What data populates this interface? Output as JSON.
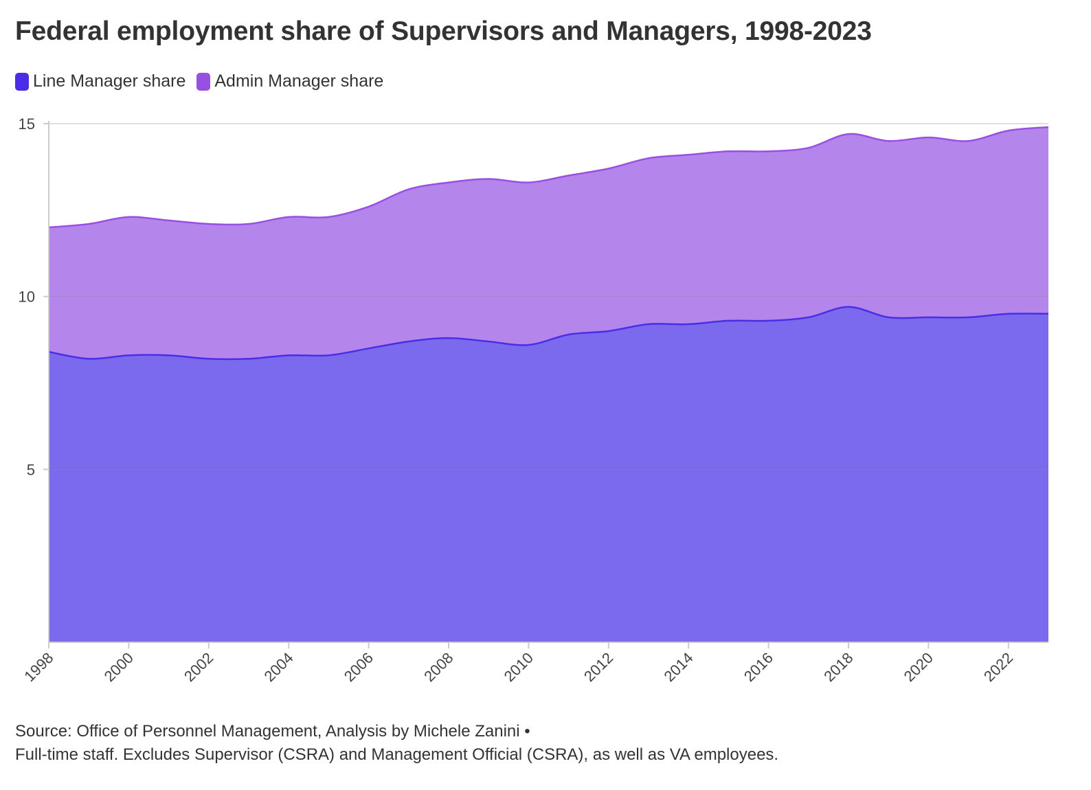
{
  "chart_data": {
    "type": "area",
    "stacked": true,
    "title": "Federal employment share of Supervisors and Managers, 1998-2023",
    "x": [
      1998,
      1999,
      2000,
      2001,
      2002,
      2003,
      2004,
      2005,
      2006,
      2007,
      2008,
      2009,
      2010,
      2011,
      2012,
      2013,
      2014,
      2015,
      2016,
      2017,
      2018,
      2019,
      2020,
      2021,
      2022,
      2023
    ],
    "series": [
      {
        "name": "Line Manager share",
        "color": "#4a2ee6",
        "fill": "#7b6aee",
        "values": [
          8.4,
          8.2,
          8.3,
          8.3,
          8.2,
          8.2,
          8.3,
          8.3,
          8.5,
          8.7,
          8.8,
          8.7,
          8.6,
          8.9,
          9.0,
          9.2,
          9.2,
          9.3,
          9.3,
          9.4,
          9.7,
          9.4,
          9.4,
          9.4,
          9.5,
          9.5
        ]
      },
      {
        "name": "Admin Manager share",
        "color": "#9a4fe3",
        "fill": "#b486ec",
        "values": [
          3.6,
          3.9,
          4.0,
          3.9,
          3.9,
          3.9,
          4.0,
          4.0,
          4.1,
          4.4,
          4.5,
          4.7,
          4.7,
          4.6,
          4.7,
          4.8,
          4.9,
          4.9,
          4.9,
          4.9,
          5.0,
          5.1,
          5.2,
          5.1,
          5.3,
          5.4
        ]
      }
    ],
    "ylim": [
      0,
      15
    ],
    "yticks": [
      "5",
      "10",
      "15"
    ],
    "xticks": [
      "1998",
      "2000",
      "2002",
      "2004",
      "2006",
      "2008",
      "2010",
      "2012",
      "2014",
      "2016",
      "2018",
      "2020",
      "2022"
    ],
    "xlabel": "",
    "ylabel": "",
    "legend_position": "top-left",
    "grid": true
  },
  "footer": {
    "source": "Source: Office of Personnel Management, Analysis by Michele Zanini •",
    "note": "Full-time staff. Excludes Supervisor (CSRA) and Management Official (CSRA), as well as VA employees."
  }
}
